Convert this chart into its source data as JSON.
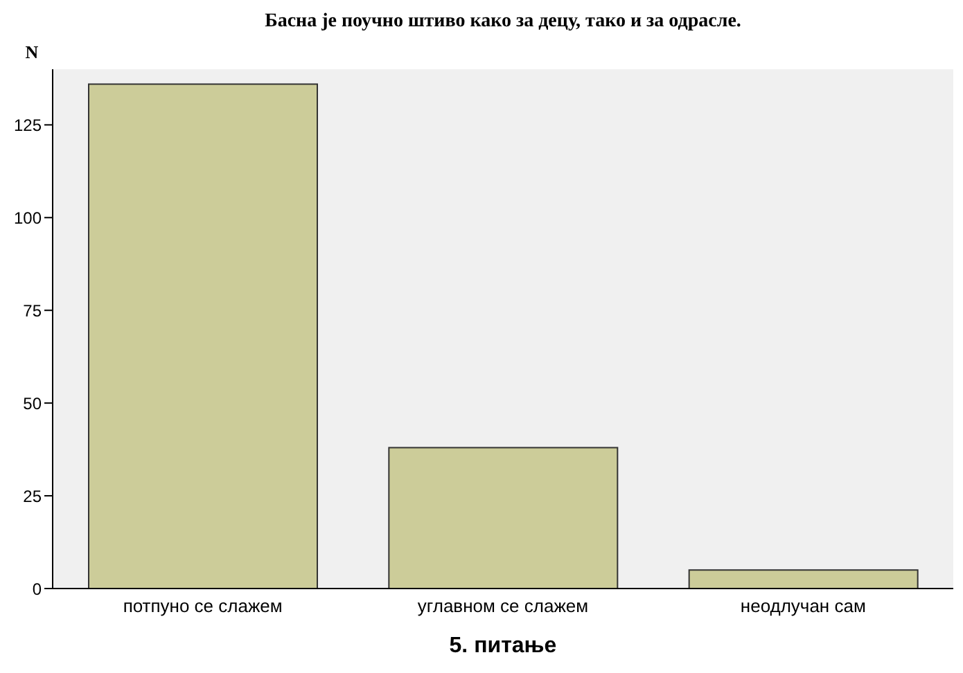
{
  "chart_data": {
    "type": "bar",
    "title": "Басна је поучно штиво како за децу, тако и за одрасле.",
    "xlabel": "5. питање",
    "ylabel": "N",
    "categories": [
      "потпуно се слажем",
      "углавном се слажем",
      "неодлучан сам"
    ],
    "values": [
      136,
      38,
      5
    ],
    "color": "#cccc99",
    "ylim": [
      0,
      140
    ],
    "yticks": [
      0,
      25,
      50,
      75,
      100,
      125
    ],
    "grid": false
  }
}
